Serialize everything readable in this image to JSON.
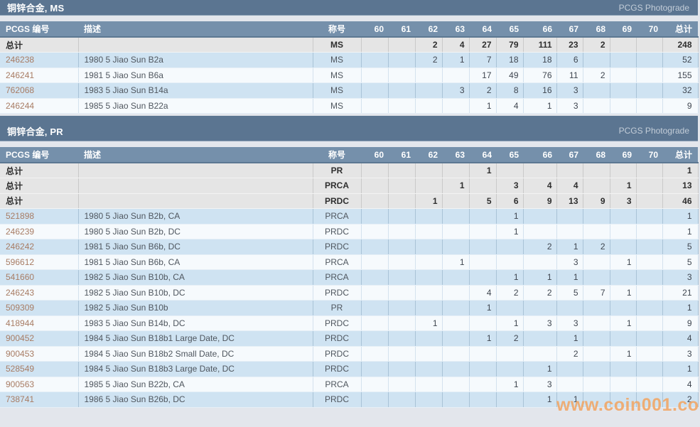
{
  "watermark": "www.coin001.com",
  "columns": {
    "pcgs_no": "PCGS 编号",
    "description": "描述",
    "designation": "称号",
    "grades": [
      "60",
      "61",
      "62",
      "63",
      "64",
      "65",
      "66",
      "67",
      "68",
      "69",
      "70"
    ],
    "total": "总计"
  },
  "colors": {
    "section_header_bg": "#5b7591",
    "table_header_bg": "#7590ab",
    "row_blue": "#cfe3f2",
    "row_white": "#f6fafd",
    "row_total": "#e5e5e5",
    "pcgs_link": "#a87c64",
    "watermark": "#f1a563"
  },
  "sections": [
    {
      "title": "铜锌合金, MS",
      "photograde_label": "PCGS Photograde",
      "rows": [
        {
          "kind": "total",
          "no": "总计",
          "desc": "",
          "desig": "MS",
          "g": [
            "",
            "",
            "2",
            "4",
            "27",
            "79",
            "111",
            "23",
            "2",
            "",
            ""
          ],
          "total": "248"
        },
        {
          "kind": "data",
          "no": "246238",
          "desc": "1980 5 Jiao Sun B2a",
          "desig": "MS",
          "g": [
            "",
            "",
            "2",
            "1",
            "7",
            "18",
            "18",
            "6",
            "",
            "",
            ""
          ],
          "total": "52"
        },
        {
          "kind": "data",
          "no": "246241",
          "desc": "1981 5 Jiao Sun B6a",
          "desig": "MS",
          "g": [
            "",
            "",
            "",
            "",
            "17",
            "49",
            "76",
            "11",
            "2",
            "",
            ""
          ],
          "total": "155"
        },
        {
          "kind": "data",
          "no": "762068",
          "desc": "1983 5 Jiao Sun B14a",
          "desig": "MS",
          "g": [
            "",
            "",
            "",
            "3",
            "2",
            "8",
            "16",
            "3",
            "",
            "",
            ""
          ],
          "total": "32"
        },
        {
          "kind": "data",
          "no": "246244",
          "desc": "1985 5 Jiao Sun B22a",
          "desig": "MS",
          "g": [
            "",
            "",
            "",
            "",
            "1",
            "4",
            "1",
            "3",
            "",
            "",
            ""
          ],
          "total": "9"
        }
      ]
    },
    {
      "title": "铜锌合金, PR",
      "photograde_label": "PCGS Photograde",
      "rows": [
        {
          "kind": "total",
          "no": "总计",
          "desc": "",
          "desig": "PR",
          "g": [
            "",
            "",
            "",
            "",
            "1",
            "",
            "",
            "",
            "",
            "",
            ""
          ],
          "total": "1"
        },
        {
          "kind": "total",
          "no": "总计",
          "desc": "",
          "desig": "PRCA",
          "g": [
            "",
            "",
            "",
            "1",
            "",
            "3",
            "4",
            "4",
            "",
            "1",
            ""
          ],
          "total": "13"
        },
        {
          "kind": "total",
          "no": "总计",
          "desc": "",
          "desig": "PRDC",
          "g": [
            "",
            "",
            "1",
            "",
            "5",
            "6",
            "9",
            "13",
            "9",
            "3",
            ""
          ],
          "total": "46"
        },
        {
          "kind": "data",
          "no": "521898",
          "desc": "1980 5 Jiao Sun B2b, CA",
          "desig": "PRCA",
          "g": [
            "",
            "",
            "",
            "",
            "",
            "1",
            "",
            "",
            "",
            "",
            ""
          ],
          "total": "1"
        },
        {
          "kind": "data",
          "no": "246239",
          "desc": "1980 5 Jiao Sun B2b, DC",
          "desig": "PRDC",
          "g": [
            "",
            "",
            "",
            "",
            "",
            "1",
            "",
            "",
            "",
            "",
            ""
          ],
          "total": "1"
        },
        {
          "kind": "data",
          "no": "246242",
          "desc": "1981 5 Jiao Sun B6b, DC",
          "desig": "PRDC",
          "g": [
            "",
            "",
            "",
            "",
            "",
            "",
            "2",
            "1",
            "2",
            "",
            ""
          ],
          "total": "5"
        },
        {
          "kind": "data",
          "no": "596612",
          "desc": "1981 5 Jiao Sun B6b, CA",
          "desig": "PRCA",
          "g": [
            "",
            "",
            "",
            "1",
            "",
            "",
            "",
            "3",
            "",
            "1",
            ""
          ],
          "total": "5"
        },
        {
          "kind": "data",
          "no": "541660",
          "desc": "1982 5 Jiao Sun B10b, CA",
          "desig": "PRCA",
          "g": [
            "",
            "",
            "",
            "",
            "",
            "1",
            "1",
            "1",
            "",
            "",
            ""
          ],
          "total": "3"
        },
        {
          "kind": "data",
          "no": "246243",
          "desc": "1982 5 Jiao Sun B10b, DC",
          "desig": "PRDC",
          "g": [
            "",
            "",
            "",
            "",
            "4",
            "2",
            "2",
            "5",
            "7",
            "1",
            ""
          ],
          "total": "21"
        },
        {
          "kind": "data",
          "no": "509309",
          "desc": "1982 5 Jiao Sun B10b",
          "desig": "PR",
          "g": [
            "",
            "",
            "",
            "",
            "1",
            "",
            "",
            "",
            "",
            "",
            ""
          ],
          "total": "1"
        },
        {
          "kind": "data",
          "no": "418944",
          "desc": "1983 5 Jiao Sun B14b, DC",
          "desig": "PRDC",
          "g": [
            "",
            "",
            "1",
            "",
            "",
            "1",
            "3",
            "3",
            "",
            "1",
            ""
          ],
          "total": "9"
        },
        {
          "kind": "data",
          "no": "900452",
          "desc": "1984 5 Jiao Sun B18b1 Large Date, DC",
          "desig": "PRDC",
          "g": [
            "",
            "",
            "",
            "",
            "1",
            "2",
            "",
            "1",
            "",
            "",
            ""
          ],
          "total": "4"
        },
        {
          "kind": "data",
          "no": "900453",
          "desc": "1984 5 Jiao Sun B18b2 Small Date, DC",
          "desig": "PRDC",
          "g": [
            "",
            "",
            "",
            "",
            "",
            "",
            "",
            "2",
            "",
            "1",
            ""
          ],
          "total": "3"
        },
        {
          "kind": "data",
          "no": "528549",
          "desc": "1984 5 Jiao Sun B18b3 Large Date, DC",
          "desig": "PRDC",
          "g": [
            "",
            "",
            "",
            "",
            "",
            "",
            "1",
            "",
            "",
            "",
            ""
          ],
          "total": "1"
        },
        {
          "kind": "data",
          "no": "900563",
          "desc": "1985 5 Jiao Sun B22b, CA",
          "desig": "PRCA",
          "g": [
            "",
            "",
            "",
            "",
            "",
            "1",
            "3",
            "",
            "",
            "",
            ""
          ],
          "total": "4"
        },
        {
          "kind": "data",
          "no": "738741",
          "desc": "1986 5 Jiao Sun B26b, DC",
          "desig": "PRDC",
          "g": [
            "",
            "",
            "",
            "",
            "",
            "",
            "1",
            "1",
            "",
            "",
            ""
          ],
          "total": "2"
        }
      ]
    }
  ]
}
